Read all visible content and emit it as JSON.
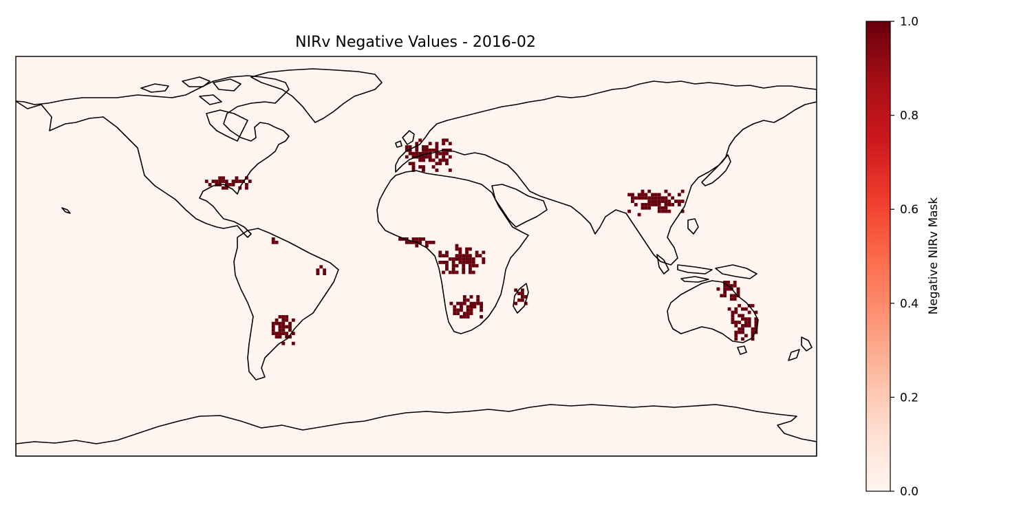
{
  "figure": {
    "title": "NIRv Negative Values - 2016-02"
  },
  "map": {
    "projection": "PlateCarree",
    "lon_range": [
      -180,
      180
    ],
    "lat_range": [
      -90,
      90
    ],
    "background_color": "#fff5f0",
    "mask_color": "#67000d",
    "coastline_color": "#000000"
  },
  "colorbar": {
    "label": "Negative NIRv Mask",
    "colormap": "Reds",
    "range": [
      0.0,
      1.0
    ],
    "ticks": [
      "0.0",
      "0.2",
      "0.4",
      "0.6",
      "0.8",
      "1.0"
    ],
    "gradient_colors": [
      "#fff5f0",
      "#fee0d2",
      "#fcbba1",
      "#fc9272",
      "#fb6a4a",
      "#ef3b2c",
      "#cb181d",
      "#a50f15",
      "#67000d"
    ]
  },
  "chart_data": {
    "type": "heatmap",
    "title": "NIRv Negative Values - 2016-02",
    "value_range": [
      0,
      1
    ],
    "mask_regions": [
      {
        "region": "Western Europe",
        "lon": [
          -5,
          15
        ],
        "lat": [
          38,
          52
        ]
      },
      {
        "region": "Southeastern USA",
        "lon": [
          -95,
          -75
        ],
        "lat": [
          30,
          35
        ]
      },
      {
        "region": "Gulf of Guinea coast",
        "lon": [
          -8,
          8
        ],
        "lat": [
          4,
          8
        ]
      },
      {
        "region": "Central Africa",
        "lon": [
          10,
          30
        ],
        "lat": [
          -8,
          5
        ]
      },
      {
        "region": "Southern Africa",
        "lon": [
          15,
          30
        ],
        "lat": [
          -28,
          -18
        ]
      },
      {
        "region": "Madagascar",
        "lon": [
          44,
          50
        ],
        "lat": [
          -22,
          -14
        ]
      },
      {
        "region": "South China / Indochina",
        "lon": [
          95,
          120
        ],
        "lat": [
          18,
          30
        ]
      },
      {
        "region": "Northern South America",
        "lon": [
          -65,
          -62
        ],
        "lat": [
          4,
          8
        ]
      },
      {
        "region": "Northeast Brazil",
        "lon": [
          -45,
          -40
        ],
        "lat": [
          -10,
          -5
        ]
      },
      {
        "region": "Northern Argentina",
        "lon": [
          -65,
          -55
        ],
        "lat": [
          -40,
          -25
        ]
      },
      {
        "region": "Northern Australia",
        "lon": [
          135,
          145
        ],
        "lat": [
          -20,
          -12
        ]
      },
      {
        "region": "Eastern Australia",
        "lon": [
          140,
          153
        ],
        "lat": [
          -38,
          -22
        ]
      }
    ]
  }
}
